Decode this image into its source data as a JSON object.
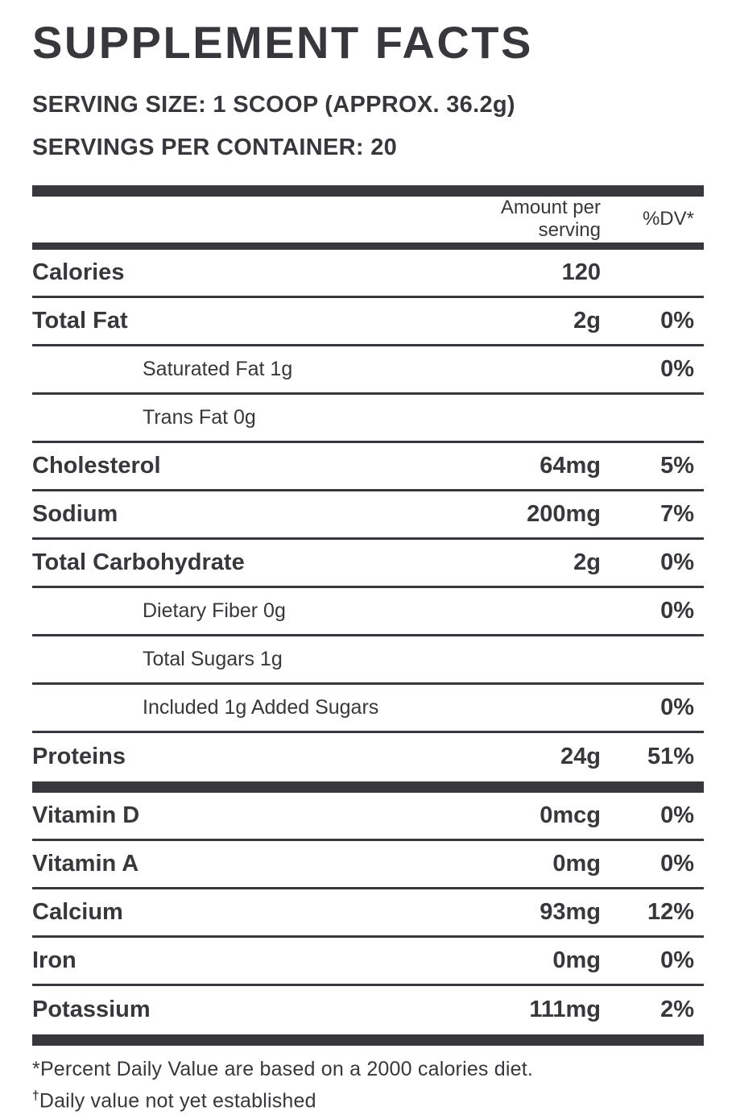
{
  "title": "SUPPLEMENT FACTS",
  "serving": {
    "size_line": "SERVING SIZE: 1 SCOOP (APPROX. 36.2g)",
    "per_container_line": "SERVINGS PER CONTAINER: 20"
  },
  "table": {
    "headers": {
      "amount": "Amount per serving",
      "dv": "%DV*"
    },
    "rows": [
      {
        "label": "Calories",
        "amount": "120",
        "dv": ""
      },
      {
        "label": "Total Fat",
        "amount": "2g",
        "dv": "0%"
      },
      {
        "label": "Saturated Fat 1g",
        "amount": "",
        "dv": "0%"
      },
      {
        "label": "Trans Fat 0g",
        "amount": "",
        "dv": ""
      },
      {
        "label": "Cholesterol",
        "amount": "64mg",
        "dv": "5%"
      },
      {
        "label": "Sodium",
        "amount": "200mg",
        "dv": "7%"
      },
      {
        "label": "Total Carbohydrate",
        "amount": "2g",
        "dv": "0%"
      },
      {
        "label": "Dietary Fiber 0g",
        "amount": "",
        "dv": "0%"
      },
      {
        "label": "Total Sugars 1g",
        "amount": "",
        "dv": ""
      },
      {
        "label": "Included 1g Added Sugars",
        "amount": "",
        "dv": "0%"
      },
      {
        "label": "Proteins",
        "amount": "24g",
        "dv": "51%"
      },
      {
        "label": "Vitamin D",
        "amount": "0mcg",
        "dv": "0%"
      },
      {
        "label": "Vitamin A",
        "amount": "0mg",
        "dv": "0%"
      },
      {
        "label": "Calcium",
        "amount": "93mg",
        "dv": "12%"
      },
      {
        "label": "Iron",
        "amount": "0mg",
        "dv": "0%"
      },
      {
        "label": "Potassium",
        "amount": "111mg",
        "dv": "2%"
      }
    ]
  },
  "footnotes": [
    {
      "marker": "*",
      "text": "Percent Daily Value are based on a 2000 calories diet."
    },
    {
      "marker": "†",
      "text": "Daily value not yet established"
    }
  ],
  "colors": {
    "ink": "#38383c",
    "background": "#ffffff"
  }
}
